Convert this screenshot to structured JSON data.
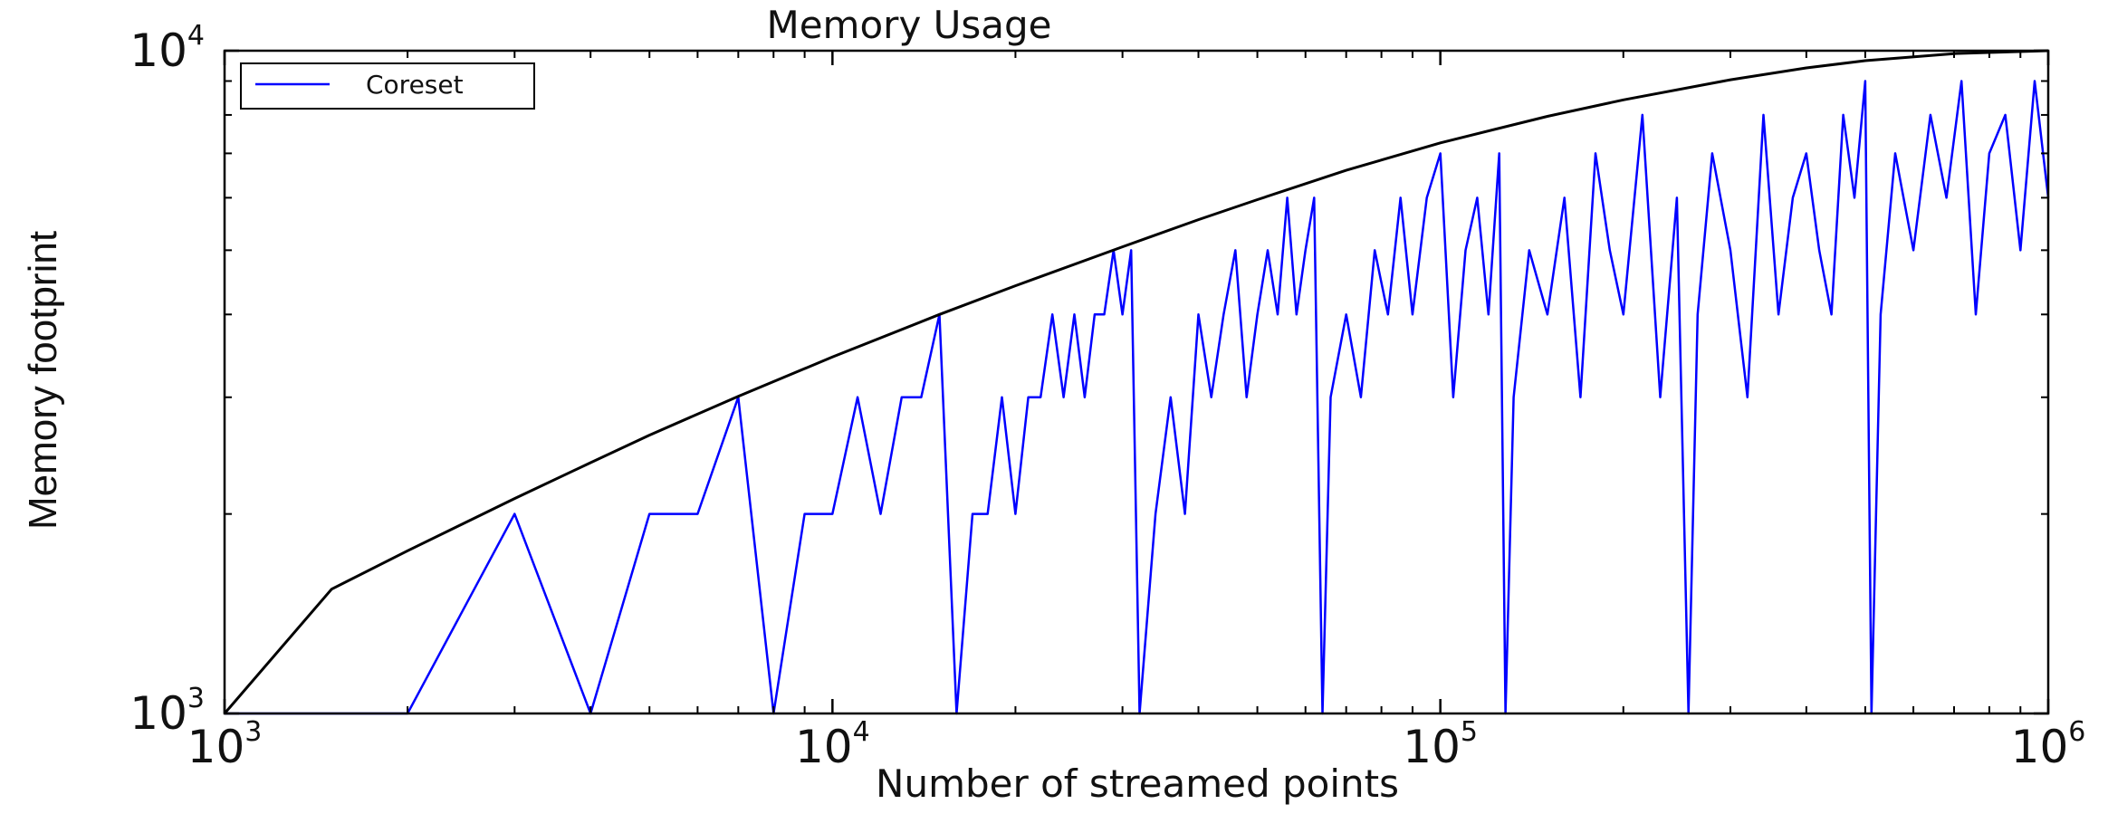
{
  "chart_data": {
    "type": "line",
    "title": "Memory Usage",
    "xlabel": "Number of streamed points",
    "ylabel": "Memory footprint",
    "x_scale": "log",
    "y_scale": "log",
    "xlim": [
      1000,
      1000000
    ],
    "ylim": [
      1000,
      10000
    ],
    "x_ticks": [
      {
        "value": 1000,
        "base": "10",
        "exp": "3"
      },
      {
        "value": 10000,
        "base": "10",
        "exp": "4"
      },
      {
        "value": 100000,
        "base": "10",
        "exp": "5"
      },
      {
        "value": 1000000,
        "base": "10",
        "exp": "6"
      }
    ],
    "y_ticks": [
      {
        "value": 1000,
        "base": "10",
        "exp": "3"
      },
      {
        "value": 10000,
        "base": "10",
        "exp": "4"
      }
    ],
    "grid": false,
    "legend_position": "top-left",
    "series": [
      {
        "name": "Coreset",
        "color": "#0000ff",
        "x": [
          1000,
          2000,
          3000,
          4000,
          5000,
          6000,
          7000,
          8000,
          9000,
          10000,
          11000,
          12000,
          13000,
          14000,
          15000,
          16000,
          17000,
          18000,
          19000,
          20000,
          21000,
          22000,
          23000,
          24000,
          25000,
          26000,
          27000,
          28000,
          29000,
          30000,
          31000,
          32000,
          34000,
          36000,
          38000,
          40000,
          42000,
          44000,
          46000,
          48000,
          50000,
          52000,
          54000,
          56000,
          58000,
          60000,
          62000,
          64000,
          66000,
          70000,
          74000,
          78000,
          82000,
          86000,
          90000,
          95000,
          100000,
          105000,
          110000,
          115000,
          120000,
          125000,
          128000,
          132000,
          140000,
          150000,
          160000,
          170000,
          180000,
          190000,
          200000,
          215000,
          230000,
          245000,
          256000,
          265000,
          280000,
          300000,
          320000,
          340000,
          360000,
          380000,
          400000,
          420000,
          440000,
          460000,
          480000,
          500000,
          512000,
          530000,
          560000,
          600000,
          640000,
          680000,
          720000,
          760000,
          800000,
          850000,
          900000,
          950000,
          1000000
        ],
        "y": [
          1000,
          1000,
          2000,
          1000,
          2000,
          2000,
          3000,
          1000,
          2000,
          2000,
          3000,
          2000,
          3000,
          3000,
          4000,
          1000,
          2000,
          2000,
          3000,
          2000,
          3000,
          3000,
          4000,
          3000,
          4000,
          3000,
          4000,
          4000,
          5000,
          4000,
          5000,
          1000,
          2000,
          3000,
          2000,
          4000,
          3000,
          4000,
          5000,
          3000,
          4000,
          5000,
          4000,
          6000,
          4000,
          5000,
          6000,
          1000,
          3000,
          4000,
          3000,
          5000,
          4000,
          6000,
          4000,
          6000,
          7000,
          3000,
          5000,
          6000,
          4000,
          7000,
          1000,
          3000,
          5000,
          4000,
          6000,
          3000,
          7000,
          5000,
          4000,
          8000,
          3000,
          6000,
          1000,
          4000,
          7000,
          5000,
          3000,
          8000,
          4000,
          6000,
          7000,
          5000,
          4000,
          8000,
          6000,
          9000,
          1000,
          4000,
          7000,
          5000,
          8000,
          6000,
          9000,
          4000,
          7000,
          8000,
          5000,
          9000,
          6000
        ]
      },
      {
        "name": "",
        "color": "#000000",
        "x": [
          1000,
          1500,
          2000,
          3000,
          4000,
          5000,
          7000,
          10000,
          15000,
          20000,
          30000,
          40000,
          50000,
          70000,
          100000,
          150000,
          200000,
          300000,
          400000,
          500000,
          700000,
          1000000
        ],
        "y": [
          1000,
          1540,
          1760,
          2110,
          2390,
          2630,
          3010,
          3450,
          4000,
          4420,
          5060,
          5560,
          5960,
          6600,
          7260,
          7960,
          8430,
          9040,
          9420,
          9660,
          9900,
          10000
        ]
      }
    ]
  }
}
